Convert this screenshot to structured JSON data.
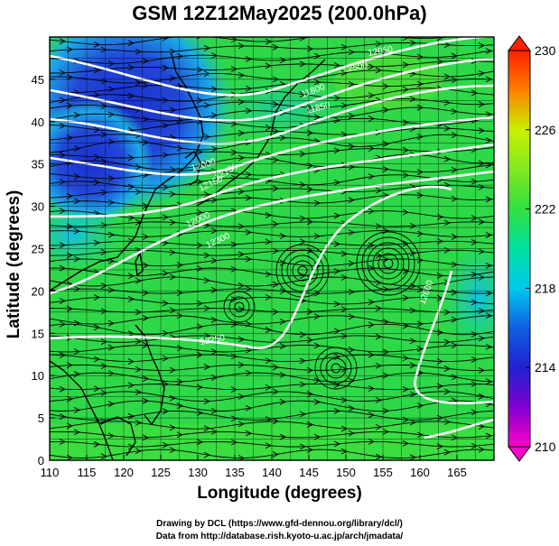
{
  "title": "GSM 12Z12May2025 (200.0hPa)",
  "axes": {
    "xlabel": "Longitude (degrees)",
    "ylabel": "Latitude  (degrees)",
    "x_ticks": [
      "110",
      "115",
      "120",
      "125",
      "130",
      "135",
      "140",
      "145",
      "150",
      "155",
      "160",
      "165"
    ],
    "y_ticks": [
      "0",
      "5",
      "10",
      "15",
      "20",
      "25",
      "30",
      "35",
      "40",
      "45"
    ]
  },
  "colorbar": {
    "ticks": [
      "210",
      "214",
      "218",
      "222",
      "226",
      "230"
    ],
    "colors": [
      "#ff00c8",
      "#2020d0",
      "#00c8f0",
      "#30e040",
      "#c8f000",
      "#ff2000"
    ]
  },
  "contour_labels": [
    "12000",
    "12150",
    "12150",
    "12000",
    "11800",
    "11850",
    "12300",
    "12050",
    "12250",
    "12600",
    "12500"
  ],
  "credits": {
    "line1": "Drawing by DCL (https://www.gfd-dennou.org/library/dcl/)",
    "line2": "Data from http://database.rish.kyoto-u.ac.jp/arch/jmadata/"
  },
  "chart_data": {
    "type": "heatmap",
    "title": "GSM 12Z12May2025 (200.0hPa)",
    "xlabel": "Longitude (degrees)",
    "ylabel": "Latitude  (degrees)",
    "xlim": [
      110,
      170
    ],
    "ylim": [
      0,
      50
    ],
    "colorbar_range": [
      210,
      230
    ],
    "overlays": [
      "temperature shading",
      "geopotential height contours",
      "wind streamlines"
    ]
  }
}
